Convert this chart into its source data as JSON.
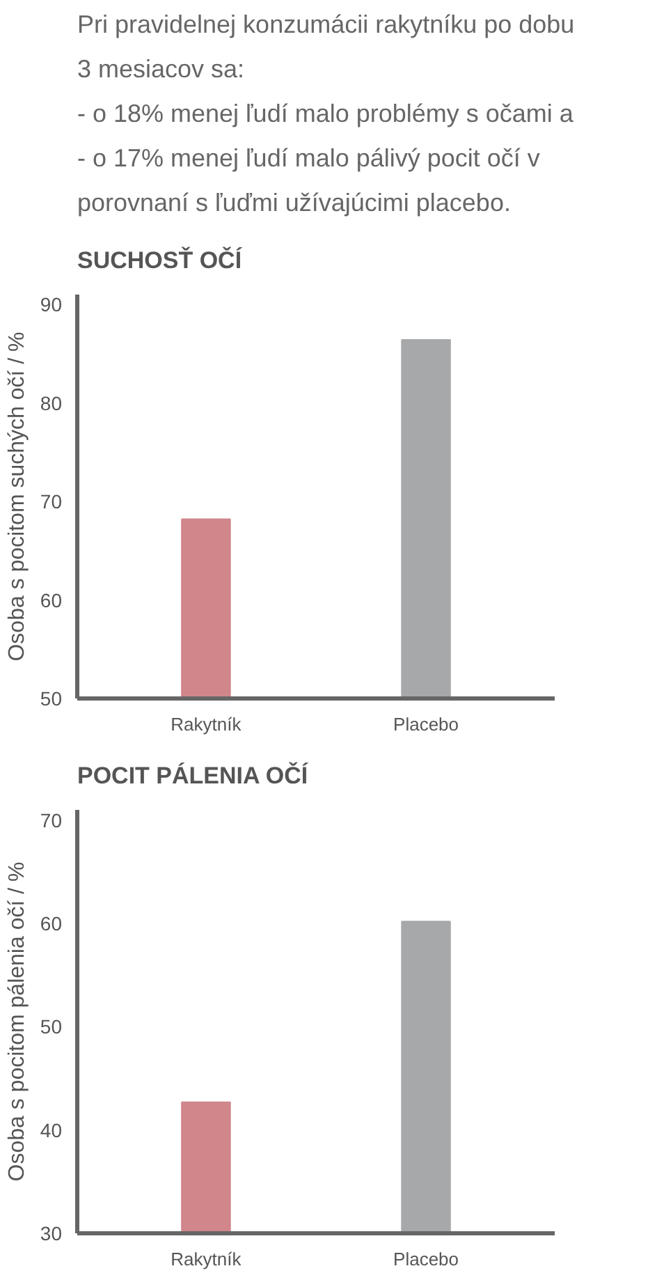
{
  "chart_data": [
    {
      "type": "bar",
      "title": "SUCHOSŤ OČÍ",
      "ylabel": "Osoba s pocitom suchých očí / %",
      "categories": [
        "Rakytník",
        "Placebo"
      ],
      "values": [
        68.2,
        86.4
      ],
      "colors": [
        "#d0868b",
        "#a7a8aa"
      ],
      "ylim": [
        50,
        91
      ],
      "yticks": [
        50,
        60,
        70,
        80,
        90
      ],
      "grid": false,
      "annotations": [
        "Pri pravidelnej konzumácii rakytníku po dobu",
        "3 mesiacov sa:",
        "- o 18% menej ľudí malo problémy s očami a",
        "- o 17% menej ľudí malo pálivý pocit očí v",
        "  porovnaní s ľuďmi užívajúcimi placebo."
      ]
    },
    {
      "type": "bar",
      "title": "POCIT PÁLENIA OČÍ",
      "ylabel": "Osoba s pocitom pálenia očí / %",
      "categories": [
        "Rakytník",
        "Placebo"
      ],
      "values": [
        42.7,
        60.2
      ],
      "colors": [
        "#d0868b",
        "#a7a8aa"
      ],
      "ylim": [
        30,
        71
      ],
      "yticks": [
        30,
        40,
        50,
        60,
        70
      ],
      "grid": false
    }
  ]
}
